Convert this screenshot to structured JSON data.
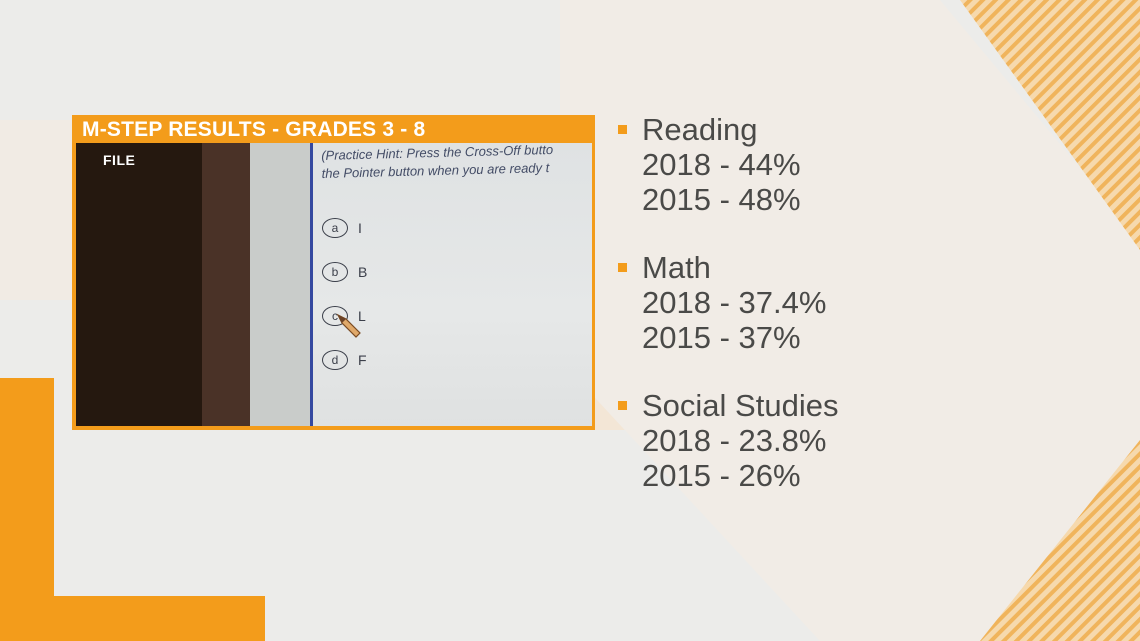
{
  "panel": {
    "title": "M-STEP RESULTS - GRADES 3 - 8",
    "file_label": "FILE",
    "hint_line1": "(Practice Hint: Press the Cross-Off butto",
    "hint_line2": "the Pointer button when you are ready t",
    "options": [
      {
        "letter": "a",
        "text": "I"
      },
      {
        "letter": "b",
        "text": "B"
      },
      {
        "letter": "c",
        "text": "L"
      },
      {
        "letter": "d",
        "text": "F"
      }
    ]
  },
  "results": [
    {
      "subject": "Reading",
      "line1": "2018 - 44%",
      "line2": "2015 - 48%"
    },
    {
      "subject": "Math",
      "line1": "2018 - 37.4%",
      "line2": "2015 - 37%"
    },
    {
      "subject": "Social Studies",
      "line1": "2018 - 23.8%",
      "line2": "2015 - 26%"
    }
  ],
  "colors": {
    "accent": "#f39c1b",
    "background": "#ececea",
    "text": "#4a4a48"
  }
}
